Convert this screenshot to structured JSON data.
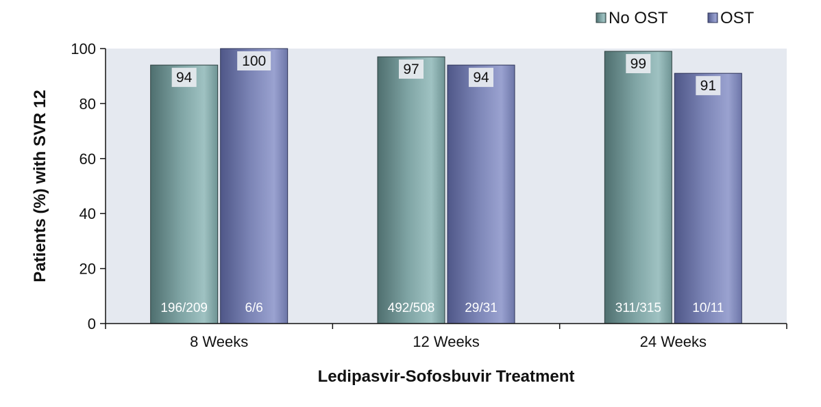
{
  "chart_data": {
    "type": "bar",
    "title": "",
    "xlabel": "Ledipasvir-Sofosbuvir Treatment",
    "ylabel": "Patients (%) with SVR 12",
    "categories": [
      "8 Weeks",
      "12 Weeks",
      "24 Weeks"
    ],
    "ylim": [
      0,
      100
    ],
    "yticks": [
      "0",
      "20",
      "40",
      "60",
      "80",
      "100"
    ],
    "grid": false,
    "legend_position": "top-right",
    "series": [
      {
        "name": "No OST",
        "color": "#7fa8a8",
        "values": [
          94,
          97,
          99
        ],
        "value_labels": [
          "94",
          "97",
          "99"
        ],
        "count_labels": [
          "196/209",
          "492/508",
          "311/315"
        ]
      },
      {
        "name": "OST",
        "color": "#8088b8",
        "values": [
          100,
          94,
          91
        ],
        "value_labels": [
          "100",
          "94",
          "91"
        ],
        "count_labels": [
          "6/6",
          "29/31",
          "10/11"
        ]
      }
    ]
  }
}
